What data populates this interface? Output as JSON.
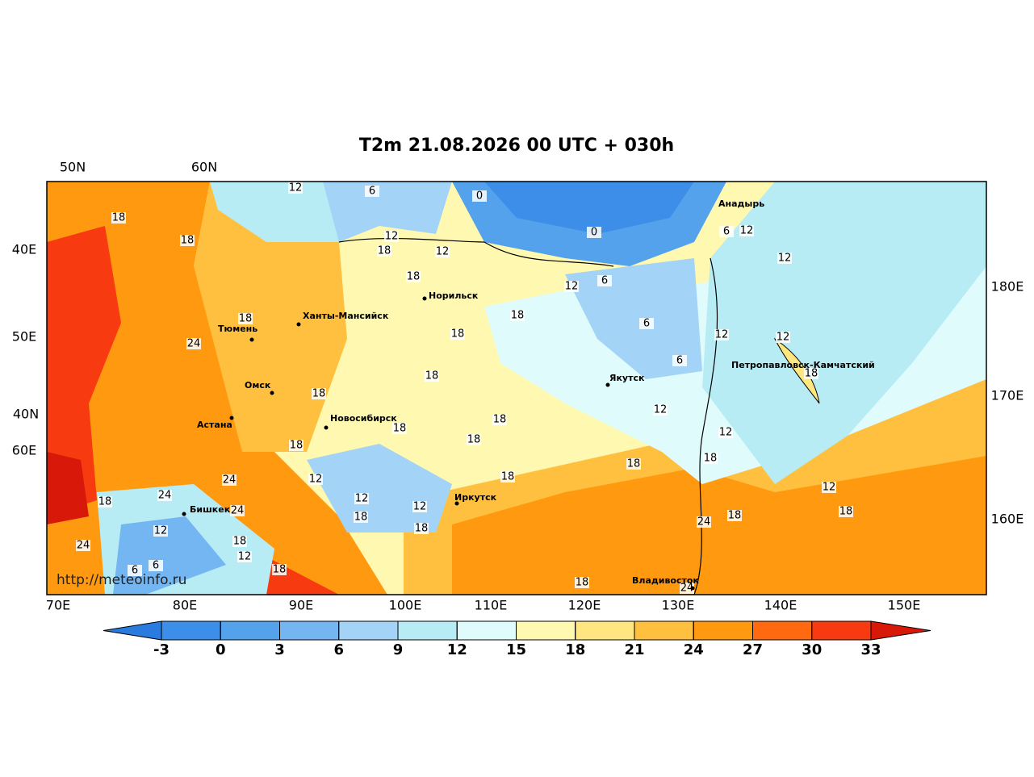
{
  "title": "T2m 21.08.2026 00 UTC + 030h",
  "axis_labels": {
    "top": [
      "50N",
      "60N"
    ],
    "left": [
      "40E",
      "50E",
      "40N",
      "60E"
    ],
    "right": [
      "180E",
      "170E",
      "160E"
    ],
    "bottom": [
      "70E",
      "80E",
      "90E",
      "100E",
      "110E",
      "120E",
      "130E",
      "140E",
      "150E"
    ]
  },
  "cities": [
    "Анадырь",
    "Норильск",
    "Ханты-Мансийск",
    "Тюмень",
    "Якутск",
    "Петропавловск-Камчатский",
    "Омск",
    "Астана",
    "Новосибирск",
    "Иркутск",
    "Бишкек",
    "Владивосток"
  ],
  "contour_labels": [
    12,
    6,
    0,
    18,
    12,
    18,
    12,
    18,
    0,
    6,
    12,
    12,
    18,
    12,
    6,
    18,
    18,
    18,
    6,
    12,
    12,
    24,
    6,
    18,
    18,
    18,
    12,
    18,
    18,
    18,
    18,
    12,
    18,
    18,
    24,
    12,
    18,
    24,
    12,
    12,
    18,
    24,
    18,
    18,
    24,
    12,
    18,
    18,
    12,
    18,
    24,
    12,
    18,
    6,
    6,
    18,
    24
  ],
  "watermark": "http://meteoinfo.ru",
  "colorbar": {
    "ticks": [
      -3,
      0,
      3,
      6,
      9,
      12,
      15,
      18,
      21,
      24,
      27,
      30,
      33
    ],
    "colors": [
      "#2a7be0",
      "#3d8ee8",
      "#55a2ec",
      "#74b6f2",
      "#a3d3f6",
      "#b8ecf5",
      "#e0fbfb",
      "#fff8b0",
      "#ffe680",
      "#ffc040",
      "#ff9a10",
      "#ff6a10",
      "#f83a10",
      "#d81808"
    ]
  }
}
